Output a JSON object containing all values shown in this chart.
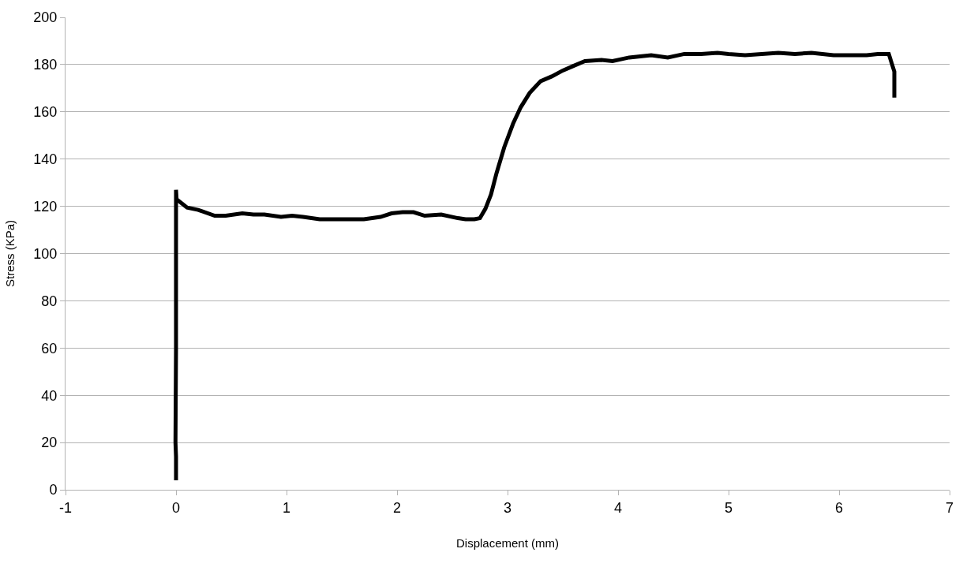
{
  "chart_data": {
    "type": "line",
    "xlabel": "Displacement (mm)",
    "ylabel": "Stress (KPa)",
    "xlim": [
      -1,
      7
    ],
    "xticks": [
      -1,
      0,
      1,
      2,
      3,
      4,
      5,
      6,
      7
    ],
    "ylim": [
      0,
      200
    ],
    "yticks": [
      0,
      20,
      40,
      60,
      80,
      100,
      120,
      140,
      160,
      180,
      200
    ],
    "grid": "y",
    "marker": "none",
    "line_style": "solid",
    "series": [
      {
        "color": "#000000",
        "x": [
          0,
          0,
          -0.005,
          0,
          0,
          0,
          0,
          0.005,
          0.1,
          0.2,
          0.35,
          0.45,
          0.6,
          0.7,
          0.8,
          0.95,
          1.05,
          1.15,
          1.3,
          1.5,
          1.7,
          1.85,
          1.95,
          2.05,
          2.15,
          2.25,
          2.4,
          2.55,
          2.62,
          2.7,
          2.75,
          2.8,
          2.85,
          2.9,
          2.97,
          3.05,
          3.12,
          3.2,
          3.3,
          3.4,
          3.5,
          3.6,
          3.7,
          3.85,
          3.95,
          4.1,
          4.2,
          4.3,
          4.45,
          4.6,
          4.75,
          4.9,
          5.0,
          5.15,
          5.3,
          5.45,
          5.6,
          5.75,
          5.95,
          6.1,
          6.25,
          6.35,
          6.45,
          6.5,
          6.5
        ],
        "values": [
          4,
          14,
          20,
          60,
          92,
          107,
          127,
          123,
          119.5,
          118.5,
          116,
          116,
          117,
          116.5,
          116.5,
          115.5,
          116,
          115.5,
          114.5,
          114.5,
          114.5,
          115.5,
          117,
          117.5,
          117.5,
          116,
          116.5,
          115,
          114.5,
          114.5,
          115,
          119,
          125,
          134,
          145,
          155,
          162,
          168,
          173,
          175,
          177.5,
          179.5,
          181.5,
          182,
          181.5,
          183,
          183.5,
          184,
          183,
          184.5,
          184.5,
          185,
          184.5,
          184,
          184.5,
          185,
          184.5,
          185,
          184,
          184,
          184,
          184.5,
          184.5,
          177,
          166
        ]
      }
    ]
  }
}
